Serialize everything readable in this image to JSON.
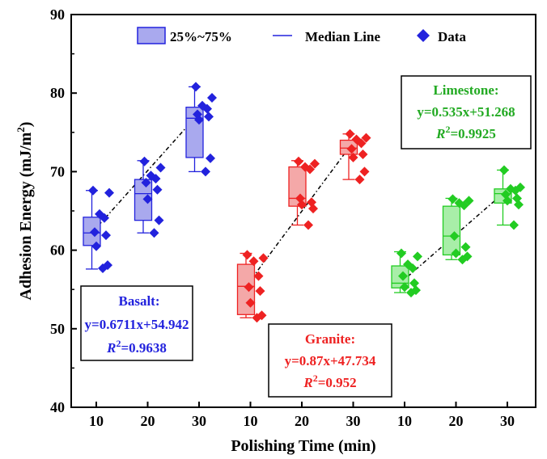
{
  "chart_data": {
    "type": "box",
    "xlabel": "Polishing Time (min)",
    "ylabel_main": "Adhesion Energy (mJ/m",
    "ylabel_sup": "2",
    "ylabel_end": ")",
    "ylim": [
      40,
      90
    ],
    "yticks": [
      "40",
      "50",
      "60",
      "70",
      "80",
      "90"
    ],
    "legend": {
      "box_label": "25%~75%",
      "median_label": "Median Line",
      "data_label": "Data",
      "placement": "top-center"
    },
    "groups": [
      {
        "name": "Basalt",
        "color": "#2222dd",
        "fill": "#a9a9ee",
        "categories": [
          "10",
          "20",
          "30"
        ],
        "boxes": [
          {
            "min": 57.6,
            "q1": 60.6,
            "median": 62.2,
            "q3": 64.2,
            "max": 67.6
          },
          {
            "min": 62.2,
            "q1": 63.8,
            "median": 67.2,
            "q3": 69.0,
            "max": 71.4
          },
          {
            "min": 70.0,
            "q1": 71.8,
            "median": 76.8,
            "q3": 78.2,
            "max": 80.8
          }
        ],
        "points": [
          [
            57.7,
            58.1,
            60.5,
            61.9,
            62.3,
            64.1,
            64.6,
            67.3,
            67.6
          ],
          [
            62.2,
            63.8,
            66.5,
            67.7,
            68.6,
            69.1,
            69.5,
            70.5,
            71.3
          ],
          [
            70.0,
            71.7,
            76.6,
            77.0,
            77.3,
            78.0,
            78.4,
            79.4,
            80.8
          ]
        ],
        "annotation": {
          "name": "Basalt:",
          "equation": "y=0.6711x+54.942",
          "r2_label": "R",
          "r2_sup": "2",
          "r2_value": "=0.9638"
        }
      },
      {
        "name": "Granite",
        "color": "#ee2222",
        "fill": "#f4a8a8",
        "categories": [
          "10",
          "20",
          "30"
        ],
        "boxes": [
          {
            "min": 51.4,
            "q1": 51.8,
            "median": 55.4,
            "q3": 58.2,
            "max": 59.6
          },
          {
            "min": 63.2,
            "q1": 65.6,
            "median": 66.6,
            "q3": 70.6,
            "max": 71.4
          },
          {
            "min": 69.0,
            "q1": 72.2,
            "median": 73.0,
            "q3": 74.0,
            "max": 74.8
          }
        ],
        "points": [
          [
            51.4,
            51.7,
            53.3,
            54.8,
            55.3,
            56.7,
            58.6,
            59.0,
            59.4
          ],
          [
            63.2,
            65.3,
            65.8,
            66.1,
            66.6,
            70.3,
            70.6,
            71.0,
            71.3
          ],
          [
            69.0,
            70.0,
            71.8,
            72.2,
            72.9,
            73.6,
            74.1,
            74.3,
            74.8
          ]
        ],
        "annotation": {
          "name": "Granite:",
          "equation": "y=0.87x+47.734",
          "r2_label": "R",
          "r2_sup": "2",
          "r2_value": "=0.952"
        }
      },
      {
        "name": "Limestone",
        "color": "#22cc22",
        "fill": "#a8eea8",
        "categories": [
          "10",
          "20",
          "30"
        ],
        "boxes": [
          {
            "min": 54.6,
            "q1": 55.2,
            "median": 55.8,
            "q3": 58.0,
            "max": 59.8
          },
          {
            "min": 58.8,
            "q1": 59.4,
            "median": 61.8,
            "q3": 65.6,
            "max": 66.6
          },
          {
            "min": 63.2,
            "q1": 66.0,
            "median": 67.2,
            "q3": 67.8,
            "max": 70.2
          }
        ],
        "points": [
          [
            54.6,
            54.9,
            55.3,
            55.8,
            56.7,
            57.7,
            58.2,
            59.2,
            59.6
          ],
          [
            58.8,
            59.2,
            59.6,
            60.4,
            61.8,
            65.7,
            66.0,
            66.3,
            66.5
          ],
          [
            63.2,
            65.8,
            66.3,
            66.6,
            67.1,
            67.6,
            67.8,
            68.0,
            70.2
          ]
        ],
        "annotation": {
          "name": "Limestone:",
          "equation": "y=0.535x+51.268",
          "r2_label": "R",
          "r2_sup": "2",
          "r2_value": "=0.9925"
        }
      }
    ]
  }
}
